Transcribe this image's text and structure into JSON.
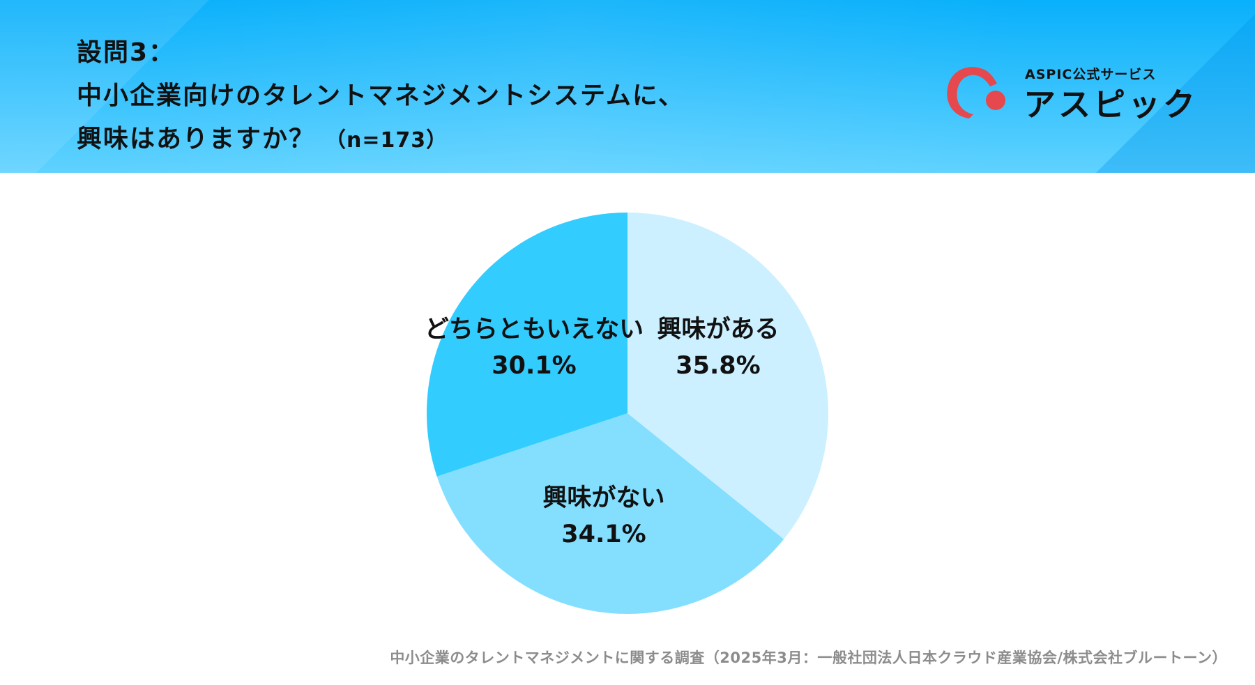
{
  "header": {
    "question_number": "設問3：",
    "question_line_1": "中小企業向けのタレントマネジメントシステムに、",
    "question_line_2": "興味はありますか？",
    "sample_size": "（n=173）"
  },
  "logo": {
    "subtitle": "ASPIC公式サービス",
    "name": "アスピック"
  },
  "colors": {
    "header_top": "#09b0fb",
    "header_bottom": "#5fd2ff",
    "slice_interested": "#ccf0ff",
    "slice_not_interested": "#84dfff",
    "slice_neutral": "#33ccff",
    "logo_red": "#e5484d"
  },
  "chart_data": {
    "type": "pie",
    "start": "12 o'clock",
    "direction": "clockwise",
    "slices": [
      {
        "label": "興味がある",
        "value": 35.8,
        "value_label": "35.8%",
        "color": "#ccf0ff"
      },
      {
        "label": "興味がない",
        "value": 34.1,
        "value_label": "34.1%",
        "color": "#84dfff"
      },
      {
        "label": "どちらともいえない",
        "value": 30.1,
        "value_label": "30.1%",
        "color": "#33ccff"
      }
    ]
  },
  "footer": {
    "source": "中小企業のタレントマネジメントに関する調査（2025年3月：一般社団法人日本クラウド産業協会/株式会社ブルートーン）"
  }
}
